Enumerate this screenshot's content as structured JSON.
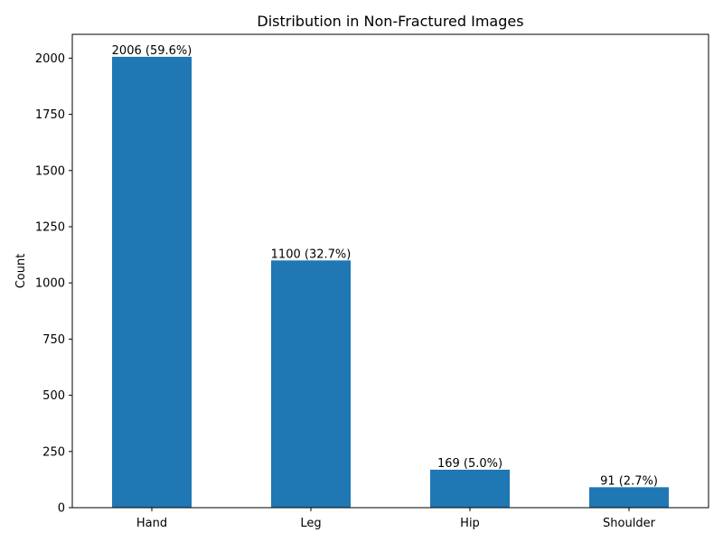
{
  "chart_data": {
    "type": "bar",
    "title": "Distribution in Non-Fractured Images",
    "xlabel": "",
    "ylabel": "Count",
    "categories": [
      "Hand",
      "Leg",
      "Hip",
      "Shoulder"
    ],
    "values": [
      2006,
      1100,
      169,
      91
    ],
    "bar_labels": [
      "2006 (59.6%)",
      "1100 (32.7%)",
      "169 (5.0%)",
      "91 (2.7%)"
    ],
    "ylim": [
      0,
      2106
    ],
    "yticks": [
      0,
      250,
      500,
      750,
      1000,
      1250,
      1500,
      1750,
      2000
    ],
    "bar_color": "#1f77b4",
    "grid": false,
    "legend": "none"
  }
}
